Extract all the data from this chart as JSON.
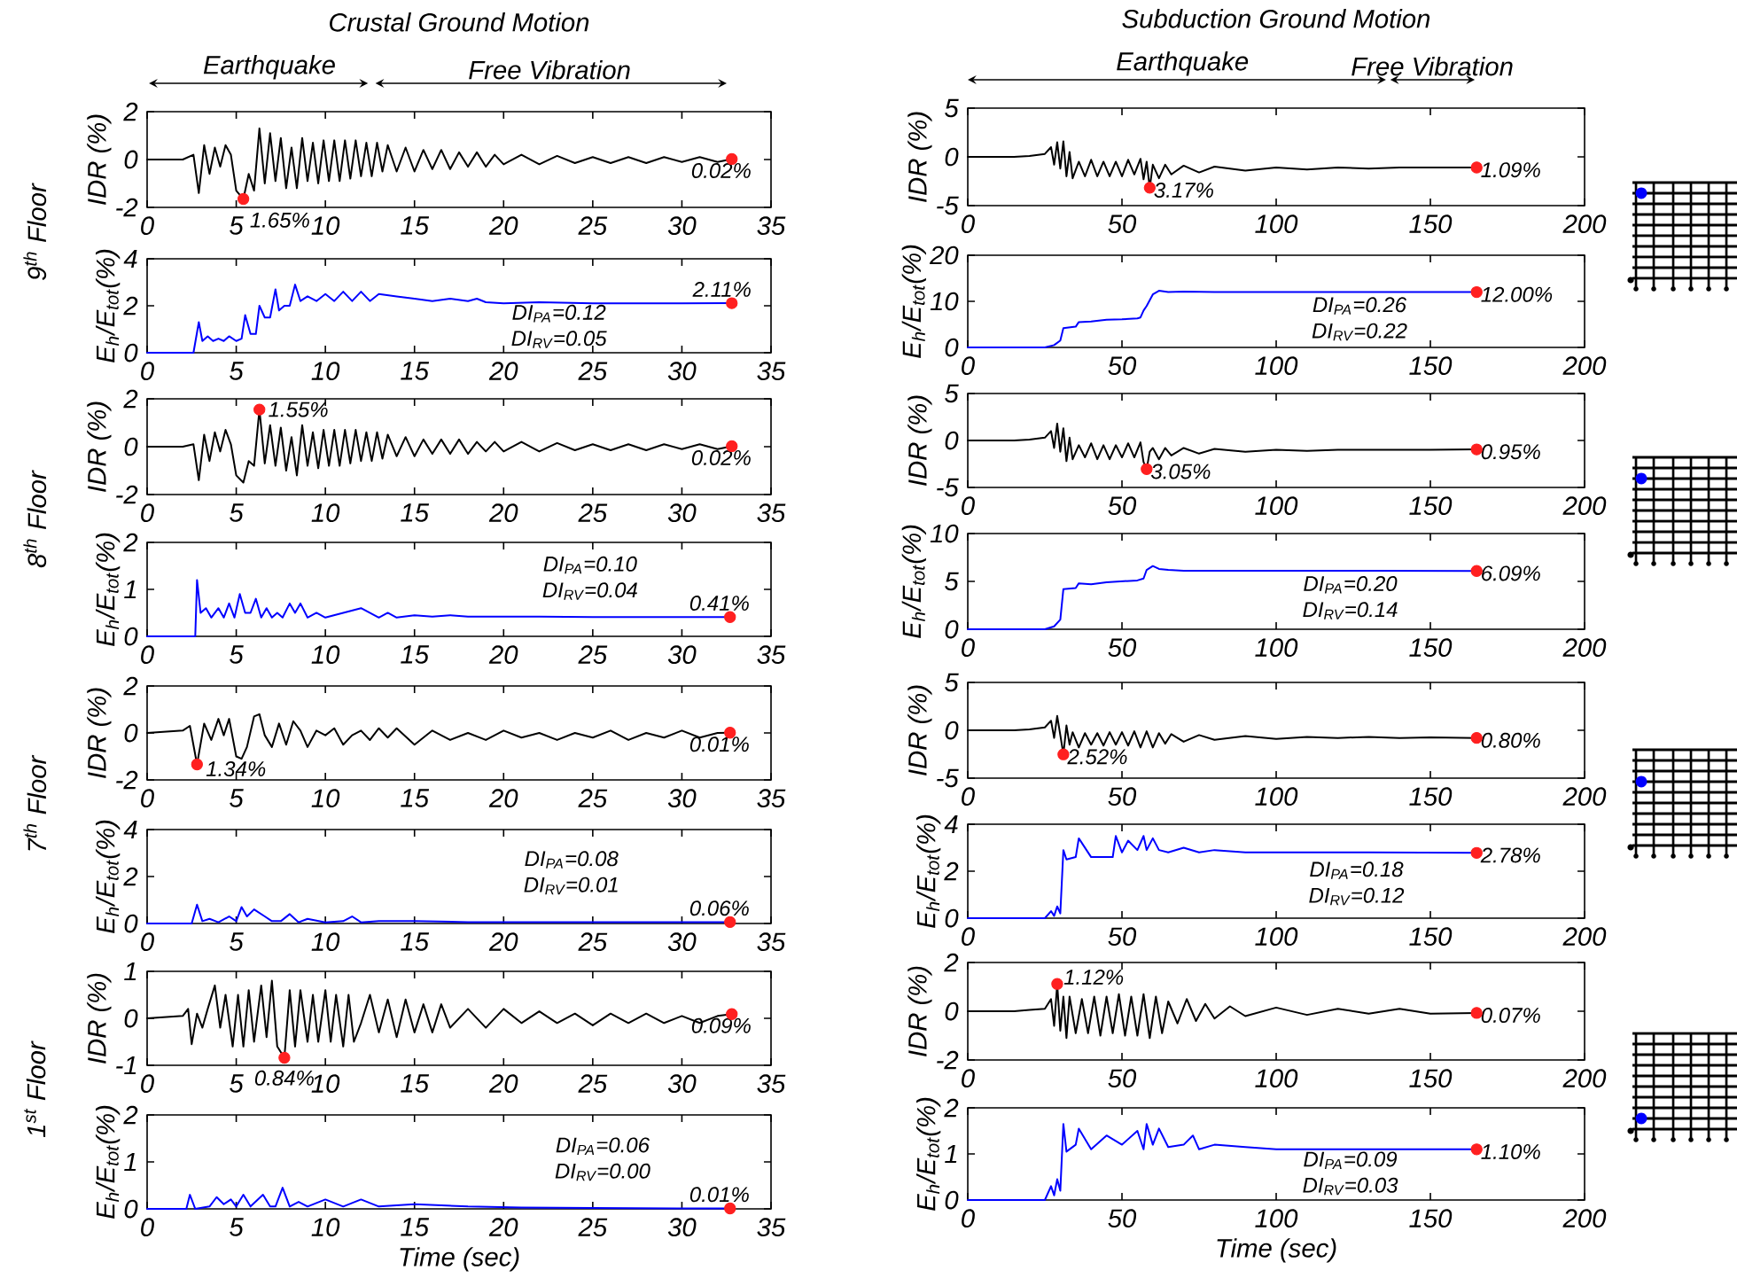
{
  "chart_data": [
    {
      "type": "line",
      "title": "Crustal Ground Motion",
      "ylabel": "IDR (%)",
      "xlim": [
        0,
        35
      ],
      "xticks": [
        0,
        5,
        10,
        15,
        20,
        25,
        30,
        35
      ],
      "ylim": [
        -2,
        2
      ],
      "yticks": [
        -2,
        0,
        2
      ],
      "series": [
        {
          "color": "#000000",
          "x": [
            0,
            2,
            2.6,
            2.9,
            3.2,
            3.5,
            3.8,
            4.1,
            4.4,
            4.7,
            5.0,
            5.4,
            5.7,
            6.0,
            6.3,
            6.6,
            6.9,
            7.2,
            7.5,
            7.8,
            8.1,
            8.4,
            8.7,
            9.0,
            9.3,
            9.6,
            9.9,
            10.2,
            10.5,
            10.8,
            11.1,
            11.4,
            11.7,
            12.0,
            12.3,
            12.6,
            12.9,
            13.2,
            13.5,
            14.0,
            14.5,
            15.0,
            15.5,
            16.0,
            16.5,
            17.0,
            17.5,
            18.0,
            18.5,
            19.0,
            19.5,
            20.0,
            21,
            22,
            23,
            24,
            25,
            26,
            27,
            28,
            29,
            30,
            31,
            32,
            32.8
          ],
          "values": [
            0,
            0,
            0.2,
            -1.4,
            0.6,
            -0.6,
            0.5,
            -0.3,
            0.6,
            0.2,
            -1.3,
            -1.65,
            -0.6,
            -1.3,
            1.3,
            -1.0,
            1.1,
            -0.9,
            0.9,
            -1.2,
            0.5,
            -1.2,
            0.9,
            -0.9,
            0.7,
            -1.0,
            0.8,
            -0.9,
            0.8,
            -0.9,
            0.8,
            -0.8,
            0.8,
            -0.7,
            0.7,
            -0.7,
            0.7,
            -0.5,
            0.6,
            -0.5,
            0.5,
            -0.5,
            0.4,
            -0.4,
            0.4,
            -0.4,
            0.3,
            -0.3,
            0.3,
            -0.3,
            0.2,
            -0.2,
            0.2,
            -0.2,
            0.15,
            -0.15,
            0.1,
            -0.15,
            0.1,
            -0.15,
            0.1,
            -0.1,
            0.1,
            -0.1,
            0.02
          ]
        },
        {
          "type": "scatter",
          "color": "#ff2020",
          "x": [
            5.4,
            32.8
          ],
          "values": [
            -1.65,
            0.02
          ]
        }
      ],
      "annotations": [
        "Earthquake",
        "Free Vibration",
        {
          "text": "1.65%",
          "x": 5.4,
          "y": -1.65
        },
        {
          "text": "0.02%",
          "x": 32.8,
          "y": 0.02
        },
        "9$^{th}$ Floor"
      ]
    },
    {
      "type": "line",
      "title": "Subduction Ground Motion",
      "ylabel": "IDR (%)",
      "xlim": [
        0,
        200
      ],
      "xticks": [
        0,
        50,
        100,
        150,
        200
      ],
      "ylim": [
        -5,
        5
      ],
      "yticks": [
        -5,
        0,
        5
      ],
      "series": [
        {
          "color": "#000000",
          "x": [
            0,
            15,
            20,
            25,
            27,
            28,
            29,
            30,
            31,
            32,
            33,
            34,
            36,
            38,
            40,
            42,
            44,
            46,
            48,
            50,
            52,
            54,
            56,
            57,
            58,
            59,
            60,
            62,
            64,
            66,
            70,
            75,
            80,
            90,
            100,
            110,
            120,
            130,
            140,
            150,
            165
          ],
          "values": [
            0,
            0,
            0.1,
            0.3,
            1.0,
            -0.8,
            1.5,
            -1.2,
            1.6,
            -2.0,
            0.5,
            -2.2,
            -0.5,
            -2.0,
            -0.3,
            -2.0,
            -0.5,
            -2.0,
            -0.5,
            -2.0,
            -0.3,
            -1.8,
            -0.2,
            -2.3,
            -0.5,
            -3.17,
            -0.8,
            -2.2,
            -0.8,
            -1.8,
            -0.9,
            -1.6,
            -1.0,
            -1.4,
            -1.1,
            -1.3,
            -1.1,
            -1.2,
            -1.1,
            -1.1,
            -1.09
          ]
        },
        {
          "type": "scatter",
          "color": "#ff2020",
          "x": [
            59,
            165
          ],
          "values": [
            -3.17,
            -1.09
          ]
        }
      ],
      "annotations": [
        "Earthquake",
        "Free Vibration",
        {
          "text": "3.17%",
          "x": 59,
          "y": -3.17
        },
        {
          "text": "1.09%",
          "x": 165,
          "y": -1.09
        }
      ]
    },
    {
      "type": "line",
      "ylabel": "E$_{h}$/E$_{tot}$(%)",
      "xlim": [
        0,
        35
      ],
      "xticks": [
        0,
        5,
        10,
        15,
        20,
        25,
        30,
        35
      ],
      "ylim": [
        0,
        4
      ],
      "yticks": [
        0,
        2,
        4
      ],
      "series": [
        {
          "color": "#0000ff",
          "x": [
            0,
            2.6,
            2.9,
            3.1,
            3.4,
            3.7,
            4.0,
            4.3,
            4.6,
            5.0,
            5.3,
            5.5,
            5.8,
            6.1,
            6.3,
            6.6,
            6.9,
            7.2,
            7.4,
            7.7,
            8.0,
            8.3,
            8.6,
            9.0,
            9.5,
            10,
            10.5,
            11,
            11.5,
            12,
            12.5,
            13,
            14,
            15,
            16,
            17,
            18,
            18.5,
            19,
            20,
            22,
            25,
            28,
            30,
            32.8
          ],
          "values": [
            0,
            0,
            1.3,
            0.5,
            0.7,
            0.5,
            0.6,
            0.5,
            0.7,
            0.5,
            0.6,
            1.6,
            0.8,
            0.8,
            2.0,
            1.5,
            1.5,
            2.7,
            1.8,
            2.0,
            2.0,
            2.9,
            2.2,
            2.4,
            2.2,
            2.5,
            2.2,
            2.6,
            2.2,
            2.6,
            2.2,
            2.5,
            2.4,
            2.3,
            2.2,
            2.3,
            2.2,
            2.3,
            2.15,
            2.1,
            2.15,
            2.1,
            2.1,
            2.1,
            2.11
          ]
        },
        {
          "type": "scatter",
          "color": "#ff2020",
          "x": [
            32.8
          ],
          "values": [
            2.11
          ]
        }
      ],
      "annotations": [
        {
          "text": "2.11%",
          "x": 32.8,
          "y": 2.11
        },
        "DI$_{PA}$=0.12",
        "DI$_{RV}$=0.05"
      ]
    },
    {
      "type": "line",
      "ylabel": "E$_{h}$/E$_{tot}$(%)",
      "xlim": [
        0,
        200
      ],
      "xticks": [
        0,
        50,
        100,
        150,
        200
      ],
      "ylim": [
        0,
        20
      ],
      "yticks": [
        0,
        10,
        20
      ],
      "series": [
        {
          "color": "#0000ff",
          "x": [
            0,
            25,
            28,
            30,
            31,
            35,
            36,
            40,
            45,
            50,
            55,
            56,
            57,
            58,
            60,
            62,
            65,
            70,
            80,
            100,
            130,
            165
          ],
          "values": [
            0,
            0,
            0.5,
            1.5,
            4.2,
            4.5,
            5.5,
            5.6,
            6.0,
            6.1,
            6.3,
            6.5,
            8.0,
            9.0,
            11.5,
            12.3,
            12.0,
            12.1,
            12.0,
            12.0,
            12.0,
            12.0
          ]
        },
        {
          "type": "scatter",
          "color": "#ff2020",
          "x": [
            165
          ],
          "values": [
            12.0
          ]
        }
      ],
      "annotations": [
        {
          "text": "12.00%",
          "x": 165,
          "y": 12.0
        },
        "DI$_{PA}$=0.26",
        "DI$_{RV}$=0.22"
      ]
    },
    {
      "type": "line",
      "ylabel": "IDR (%)",
      "xlim": [
        0,
        35
      ],
      "xticks": [
        0,
        5,
        10,
        15,
        20,
        25,
        30,
        35
      ],
      "ylim": [
        -2,
        2
      ],
      "yticks": [
        -2,
        0,
        2
      ],
      "series": [
        {
          "color": "#000000",
          "x": [
            0,
            2,
            2.6,
            2.9,
            3.2,
            3.5,
            3.8,
            4.1,
            4.4,
            4.7,
            5.0,
            5.4,
            5.7,
            6.0,
            6.3,
            6.6,
            6.9,
            7.2,
            7.5,
            7.8,
            8.1,
            8.4,
            8.7,
            9.0,
            9.3,
            9.6,
            9.9,
            10.2,
            10.5,
            10.8,
            11.1,
            11.4,
            11.7,
            12.0,
            12.3,
            12.6,
            12.9,
            13.2,
            13.5,
            14.0,
            14.5,
            15.0,
            15.5,
            16.0,
            16.5,
            17.0,
            17.5,
            18.0,
            18.5,
            19.0,
            19.5,
            20.0,
            21,
            22,
            23,
            24,
            25,
            26,
            27,
            28,
            29,
            30,
            31,
            32,
            32.8
          ],
          "values": [
            0,
            0,
            0.1,
            -1.4,
            0.5,
            -0.6,
            0.6,
            -0.2,
            0.7,
            0.1,
            -1.2,
            -1.5,
            -0.6,
            -0.8,
            1.55,
            -0.7,
            0.9,
            -0.8,
            0.8,
            -1.0,
            0.4,
            -1.2,
            0.9,
            -0.8,
            0.6,
            -0.9,
            0.7,
            -0.8,
            0.7,
            -0.8,
            0.7,
            -0.7,
            0.7,
            -0.6,
            0.6,
            -0.6,
            0.6,
            -0.5,
            0.5,
            -0.4,
            0.4,
            -0.4,
            0.3,
            -0.3,
            0.3,
            -0.3,
            0.3,
            -0.3,
            0.2,
            -0.2,
            0.2,
            -0.2,
            0.2,
            -0.2,
            0.15,
            -0.15,
            0.1,
            -0.15,
            0.1,
            -0.15,
            0.1,
            -0.1,
            0.1,
            -0.1,
            0.02
          ]
        },
        {
          "type": "scatter",
          "color": "#ff2020",
          "x": [
            6.3,
            32.8
          ],
          "values": [
            1.55,
            0.02
          ]
        }
      ],
      "annotations": [
        {
          "text": "1.55%",
          "x": 6.3,
          "y": 1.55
        },
        {
          "text": "0.02%",
          "x": 32.8,
          "y": 0.02
        },
        "8$^{th}$ Floor"
      ]
    },
    {
      "type": "line",
      "ylabel": "IDR (%)",
      "xlim": [
        0,
        200
      ],
      "xticks": [
        0,
        50,
        100,
        150,
        200
      ],
      "ylim": [
        -5,
        5
      ],
      "yticks": [
        -5,
        0,
        5
      ],
      "series": [
        {
          "color": "#000000",
          "x": [
            0,
            15,
            20,
            25,
            27,
            28,
            29,
            30,
            31,
            32,
            33,
            34,
            36,
            38,
            40,
            42,
            44,
            46,
            48,
            50,
            52,
            54,
            56,
            57,
            58,
            59,
            60,
            62,
            64,
            66,
            70,
            75,
            80,
            90,
            100,
            110,
            120,
            130,
            140,
            150,
            165
          ],
          "values": [
            0,
            0,
            0.1,
            0.3,
            1.0,
            -0.8,
            1.8,
            -1.2,
            1.3,
            -2.2,
            0.3,
            -2.0,
            -0.5,
            -1.8,
            -0.3,
            -2.0,
            -0.5,
            -2.0,
            -0.5,
            -1.8,
            -0.3,
            -1.8,
            -0.2,
            -2.3,
            -3.05,
            -1.2,
            -0.8,
            -2.0,
            -0.8,
            -1.6,
            -0.8,
            -1.4,
            -0.9,
            -1.2,
            -1.0,
            -1.1,
            -1.0,
            -1.0,
            -1.0,
            -1.0,
            -0.95
          ]
        },
        {
          "type": "scatter",
          "color": "#ff2020",
          "x": [
            58,
            165
          ],
          "values": [
            -3.05,
            -0.95
          ]
        }
      ],
      "annotations": [
        {
          "text": "3.05%",
          "x": 58,
          "y": -3.05
        },
        {
          "text": "0.95%",
          "x": 165,
          "y": -0.95
        }
      ]
    },
    {
      "type": "line",
      "ylabel": "E$_{h}$/E$_{tot}$(%)",
      "xlim": [
        0,
        35
      ],
      "xticks": [
        0,
        5,
        10,
        15,
        20,
        25,
        30,
        35
      ],
      "ylim": [
        0,
        2
      ],
      "yticks": [
        0,
        1,
        2
      ],
      "series": [
        {
          "color": "#0000ff",
          "x": [
            0,
            2.7,
            2.8,
            3.0,
            3.3,
            3.6,
            4.0,
            4.3,
            4.6,
            4.9,
            5.2,
            5.5,
            5.8,
            6.1,
            6.4,
            6.7,
            7.0,
            7.3,
            7.6,
            8.0,
            8.3,
            8.6,
            9.0,
            9.5,
            10,
            11,
            12,
            13,
            13.5,
            14,
            15,
            16,
            17,
            18,
            20,
            22,
            25,
            28,
            30,
            32.7
          ],
          "values": [
            0,
            0,
            1.2,
            0.5,
            0.6,
            0.4,
            0.6,
            0.4,
            0.7,
            0.4,
            0.9,
            0.5,
            0.5,
            0.8,
            0.4,
            0.6,
            0.4,
            0.5,
            0.4,
            0.7,
            0.5,
            0.7,
            0.4,
            0.5,
            0.4,
            0.5,
            0.6,
            0.4,
            0.5,
            0.4,
            0.45,
            0.42,
            0.45,
            0.42,
            0.42,
            0.42,
            0.41,
            0.41,
            0.41,
            0.41
          ]
        },
        {
          "type": "scatter",
          "color": "#ff2020",
          "x": [
            32.7
          ],
          "values": [
            0.41
          ]
        }
      ],
      "annotations": [
        {
          "text": "0.41%",
          "x": 32.7,
          "y": 0.41
        },
        "DI$_{PA}$=0.10",
        "DI$_{RV}$=0.04"
      ]
    },
    {
      "type": "line",
      "ylabel": "E$_{h}$/E$_{tot}$(%)",
      "xlim": [
        0,
        200
      ],
      "xticks": [
        0,
        50,
        100,
        150,
        200
      ],
      "ylim": [
        0,
        10
      ],
      "yticks": [
        0,
        5,
        10
      ],
      "series": [
        {
          "color": "#0000ff",
          "x": [
            0,
            25,
            28,
            30,
            31,
            35,
            36,
            40,
            45,
            50,
            55,
            57,
            58,
            60,
            62,
            65,
            70,
            80,
            100,
            130,
            165
          ],
          "values": [
            0,
            0,
            0.3,
            1.0,
            4.2,
            4.3,
            4.8,
            4.7,
            4.9,
            5.0,
            5.1,
            5.3,
            6.2,
            6.6,
            6.3,
            6.2,
            6.1,
            6.1,
            6.1,
            6.1,
            6.09
          ]
        },
        {
          "type": "scatter",
          "color": "#ff2020",
          "x": [
            165
          ],
          "values": [
            6.09
          ]
        }
      ],
      "annotations": [
        {
          "text": "6.09%",
          "x": 165,
          "y": 6.09
        },
        "DI$_{PA}$=0.20",
        "DI$_{RV}$=0.14"
      ]
    },
    {
      "type": "line",
      "ylabel": "IDR (%)",
      "xlim": [
        0,
        35
      ],
      "xticks": [
        0,
        5,
        10,
        15,
        20,
        25,
        30,
        35
      ],
      "ylim": [
        -2,
        2
      ],
      "yticks": [
        -2,
        0,
        2
      ],
      "series": [
        {
          "color": "#000000",
          "x": [
            0,
            2,
            2.4,
            2.8,
            3.2,
            3.6,
            4.0,
            4.3,
            4.6,
            5.0,
            5.3,
            5.6,
            6.0,
            6.3,
            6.6,
            7.0,
            7.4,
            7.8,
            8.2,
            8.6,
            9.0,
            9.5,
            10,
            10.5,
            11,
            11.5,
            12,
            12.5,
            13,
            13.5,
            14,
            15,
            16,
            17,
            18,
            19,
            20,
            21,
            22,
            23,
            24,
            25,
            26,
            27,
            28,
            29,
            30,
            31,
            32,
            32.7
          ],
          "values": [
            0,
            0.1,
            0.3,
            -1.34,
            0.4,
            -0.3,
            0.6,
            -0.1,
            0.6,
            -1.0,
            -1.1,
            -0.6,
            0.7,
            0.8,
            -0.1,
            -0.6,
            0.4,
            -0.5,
            0.5,
            0.1,
            -0.6,
            0.1,
            -0.1,
            0.2,
            -0.5,
            -0.1,
            0.1,
            -0.3,
            0.2,
            -0.2,
            0.2,
            -0.5,
            0.1,
            -0.3,
            0,
            -0.3,
            0.1,
            -0.2,
            0,
            -0.3,
            0,
            -0.2,
            0.1,
            -0.3,
            0,
            -0.2,
            0.1,
            -0.2,
            0,
            0.01
          ]
        },
        {
          "type": "scatter",
          "color": "#ff2020",
          "x": [
            2.8,
            32.7
          ],
          "values": [
            -1.34,
            0.01
          ]
        }
      ],
      "annotations": [
        {
          "text": "1.34%",
          "x": 2.8,
          "y": -1.34
        },
        {
          "text": "0.01%",
          "x": 32.7,
          "y": 0.01
        },
        "7$^{th}$ Floor"
      ]
    },
    {
      "type": "line",
      "ylabel": "IDR (%)",
      "xlim": [
        0,
        200
      ],
      "xticks": [
        0,
        50,
        100,
        150,
        200
      ],
      "ylim": [
        -5,
        5
      ],
      "yticks": [
        -5,
        0,
        5
      ],
      "series": [
        {
          "color": "#000000",
          "x": [
            0,
            15,
            20,
            25,
            27,
            28,
            29,
            30,
            31,
            32,
            33,
            34,
            36,
            38,
            40,
            42,
            44,
            46,
            48,
            50,
            52,
            54,
            56,
            58,
            60,
            62,
            64,
            66,
            70,
            75,
            80,
            90,
            100,
            110,
            120,
            130,
            140,
            150,
            165
          ],
          "values": [
            0,
            0,
            0.1,
            0.3,
            1.0,
            -0.8,
            1.5,
            -0.5,
            -2.52,
            0.5,
            -1.5,
            -0.2,
            -1.8,
            -0.3,
            -1.5,
            -0.3,
            -1.6,
            -0.2,
            -1.5,
            -0.2,
            -1.6,
            -0.1,
            -1.8,
            -0.1,
            -1.8,
            -0.3,
            -1.4,
            -0.4,
            -1.2,
            -0.5,
            -1.0,
            -0.6,
            -0.9,
            -0.7,
            -0.8,
            -0.7,
            -0.8,
            -0.75,
            -0.8
          ]
        },
        {
          "type": "scatter",
          "color": "#ff2020",
          "x": [
            31,
            165
          ],
          "values": [
            -2.52,
            -0.8
          ]
        }
      ],
      "annotations": [
        {
          "text": "2.52%",
          "x": 31,
          "y": -2.52
        },
        {
          "text": "0.80%",
          "x": 165,
          "y": -0.8
        }
      ]
    },
    {
      "type": "line",
      "ylabel": "E$_{h}$/E$_{tot}$(%)",
      "xlim": [
        0,
        35
      ],
      "xticks": [
        0,
        5,
        10,
        15,
        20,
        25,
        30,
        35
      ],
      "ylim": [
        0,
        4
      ],
      "yticks": [
        0,
        2,
        4
      ],
      "series": [
        {
          "color": "#0000ff",
          "x": [
            0,
            2.5,
            2.8,
            3.1,
            3.5,
            4,
            4.6,
            5.0,
            5.3,
            5.6,
            6.0,
            6.6,
            7.0,
            7.5,
            8.0,
            8.5,
            9,
            10,
            11,
            11.5,
            12,
            13,
            15,
            18,
            22,
            26,
            30,
            32.7
          ],
          "values": [
            0,
            0,
            0.8,
            0.1,
            0.2,
            0.05,
            0.3,
            0.1,
            0.7,
            0.3,
            0.6,
            0.3,
            0.1,
            0.1,
            0.4,
            0.05,
            0.2,
            0.05,
            0.1,
            0.3,
            0.05,
            0.1,
            0.1,
            0.06,
            0.06,
            0.06,
            0.06,
            0.06
          ]
        },
        {
          "type": "scatter",
          "color": "#ff2020",
          "x": [
            32.7
          ],
          "values": [
            0.06
          ]
        }
      ],
      "annotations": [
        {
          "text": "0.06%",
          "x": 32.7,
          "y": 0.06
        },
        "DI$_{PA}$=0.08",
        "DI$_{RV}$=0.01"
      ]
    },
    {
      "type": "line",
      "ylabel": "E$_{h}$/E$_{tot}$(%)",
      "xlim": [
        0,
        200
      ],
      "xticks": [
        0,
        50,
        100,
        150,
        200
      ],
      "ylim": [
        0,
        4
      ],
      "yticks": [
        0,
        2,
        4
      ],
      "series": [
        {
          "color": "#0000ff",
          "x": [
            0,
            25,
            27,
            28,
            29,
            30,
            31,
            32,
            35,
            36,
            40,
            45,
            47,
            48,
            50,
            52,
            55,
            57,
            58,
            60,
            62,
            65,
            70,
            75,
            80,
            90,
            100,
            130,
            165
          ],
          "values": [
            0,
            0,
            0.3,
            0.1,
            0.5,
            0.2,
            2.9,
            2.5,
            2.6,
            3.4,
            2.6,
            2.6,
            2.6,
            3.5,
            2.8,
            3.3,
            2.9,
            3.5,
            2.9,
            3.4,
            2.9,
            2.8,
            3.0,
            2.8,
            2.9,
            2.8,
            2.8,
            2.8,
            2.78
          ]
        },
        {
          "type": "scatter",
          "color": "#ff2020",
          "x": [
            165
          ],
          "values": [
            2.78
          ]
        }
      ],
      "annotations": [
        {
          "text": "2.78%",
          "x": 165,
          "y": 2.78
        },
        "DI$_{PA}$=0.18",
        "DI$_{RV}$=0.12"
      ]
    },
    {
      "type": "line",
      "ylabel": "IDR (%)",
      "xlim": [
        0,
        35
      ],
      "xticks": [
        0,
        5,
        10,
        15,
        20,
        25,
        30,
        35
      ],
      "ylim": [
        -1,
        1
      ],
      "yticks": [
        -1,
        0,
        1
      ],
      "series": [
        {
          "color": "#000000",
          "x": [
            0,
            2,
            2.3,
            2.5,
            2.8,
            3.1,
            3.4,
            3.8,
            4.1,
            4.4,
            4.8,
            5.1,
            5.4,
            5.7,
            6.0,
            6.4,
            6.7,
            7.0,
            7.3,
            7.7,
            8.0,
            8.3,
            8.6,
            9.0,
            9.3,
            9.6,
            10.0,
            10.3,
            10.6,
            11.0,
            11.3,
            11.6,
            12.0,
            12.5,
            13,
            13.5,
            14,
            14.5,
            15,
            15.5,
            16,
            16.5,
            17,
            18,
            19,
            20,
            21,
            22,
            23,
            24,
            25,
            26,
            27,
            28,
            29,
            30,
            31,
            32,
            32.8
          ],
          "values": [
            0,
            0.05,
            0.2,
            -0.55,
            0.1,
            -0.2,
            0.2,
            0.7,
            -0.2,
            0.5,
            -0.6,
            0.5,
            -0.6,
            0.6,
            -0.5,
            0.7,
            -0.4,
            0.8,
            -0.6,
            -0.84,
            0.6,
            -0.6,
            0.6,
            -0.5,
            0.5,
            -0.5,
            0.6,
            -0.5,
            0.5,
            -0.6,
            0.5,
            -0.5,
            -0.1,
            0.5,
            -0.3,
            0.4,
            -0.4,
            0.4,
            -0.3,
            0.3,
            -0.3,
            0.3,
            -0.2,
            0.2,
            -0.2,
            0.2,
            -0.1,
            0.15,
            -0.1,
            0.1,
            -0.15,
            0.1,
            -0.1,
            0.1,
            -0.1,
            0.05,
            -0.1,
            0.05,
            0.09
          ]
        },
        {
          "type": "scatter",
          "color": "#ff2020",
          "x": [
            7.7,
            32.8
          ],
          "values": [
            -0.84,
            0.09
          ]
        }
      ],
      "annotations": [
        {
          "text": "0.84%",
          "x": 7.7,
          "y": -0.84
        },
        {
          "text": "0.09%",
          "x": 32.8,
          "y": 0.09
        },
        "1$^{st}$ Floor"
      ]
    },
    {
      "type": "line",
      "ylabel": "IDR (%)",
      "xlim": [
        0,
        200
      ],
      "xticks": [
        0,
        50,
        100,
        150,
        200
      ],
      "ylim": [
        -2,
        2
      ],
      "yticks": [
        -2,
        0,
        2
      ],
      "series": [
        {
          "color": "#000000",
          "x": [
            0,
            15,
            20,
            25,
            27,
            28,
            29,
            30,
            31,
            32,
            33,
            35,
            37,
            39,
            41,
            43,
            45,
            47,
            49,
            51,
            53,
            55,
            57,
            59,
            61,
            63,
            65,
            68,
            71,
            74,
            77,
            80,
            85,
            90,
            100,
            110,
            120,
            130,
            140,
            150,
            165
          ],
          "values": [
            0,
            0,
            0.05,
            0.1,
            0.5,
            -0.6,
            1.12,
            -0.8,
            0.6,
            -1.1,
            0.6,
            -0.9,
            0.5,
            -0.9,
            0.6,
            -1.0,
            0.6,
            -0.9,
            0.7,
            -1.0,
            0.6,
            -1.0,
            0.7,
            -1.1,
            0.6,
            -0.9,
            0.4,
            -0.5,
            0.5,
            -0.4,
            0.3,
            -0.3,
            0.2,
            -0.2,
            0.15,
            -0.15,
            0.1,
            -0.1,
            0.1,
            -0.1,
            -0.07
          ]
        },
        {
          "type": "scatter",
          "color": "#ff2020",
          "x": [
            29,
            165
          ],
          "values": [
            1.12,
            -0.07
          ]
        }
      ],
      "annotations": [
        {
          "text": "1.12%",
          "x": 29,
          "y": 1.12
        },
        {
          "text": "0.07%",
          "x": 165,
          "y": -0.07
        }
      ]
    },
    {
      "type": "line",
      "xlabel": "Time (sec)",
      "ylabel": "E$_{h}$/E$_{tot}$(%)",
      "xlim": [
        0,
        35
      ],
      "xticks": [
        0,
        5,
        10,
        15,
        20,
        25,
        30,
        35
      ],
      "ylim": [
        0,
        2
      ],
      "yticks": [
        0,
        1,
        2
      ],
      "series": [
        {
          "color": "#0000ff",
          "x": [
            0,
            2.2,
            2.4,
            2.7,
            3.5,
            3.9,
            4.3,
            4.7,
            5.0,
            5.4,
            5.8,
            6.5,
            6.9,
            7.2,
            7.6,
            8.0,
            8.5,
            9,
            10,
            11,
            12,
            13,
            15,
            18,
            21,
            25,
            30,
            32.7
          ],
          "values": [
            0,
            0,
            0.3,
            0,
            0.05,
            0.25,
            0.1,
            0.2,
            0.05,
            0.3,
            0.05,
            0.3,
            0.05,
            0.05,
            0.45,
            0.05,
            0.15,
            0.05,
            0.2,
            0.05,
            0.2,
            0.05,
            0.1,
            0.05,
            0.03,
            0.02,
            0.01,
            0.01
          ]
        },
        {
          "type": "scatter",
          "color": "#ff2020",
          "x": [
            32.7
          ],
          "values": [
            0.01
          ]
        }
      ],
      "annotations": [
        {
          "text": "0.01%",
          "x": 32.7,
          "y": 0.01
        },
        "DI$_{PA}$=0.06",
        "DI$_{RV}$=0.00"
      ]
    },
    {
      "type": "line",
      "xlabel": "Time (sec)",
      "ylabel": "E$_{h}$/E$_{tot}$(%)",
      "xlim": [
        0,
        200
      ],
      "xticks": [
        0,
        50,
        100,
        150,
        200
      ],
      "ylim": [
        0,
        2
      ],
      "yticks": [
        0,
        1,
        2
      ],
      "series": [
        {
          "color": "#0000ff",
          "x": [
            0,
            25,
            27,
            28,
            29,
            30,
            31,
            32,
            35,
            36,
            40,
            45,
            50,
            55,
            57,
            58,
            60,
            62,
            65,
            70,
            73,
            75,
            80,
            90,
            100,
            130,
            165
          ],
          "values": [
            0,
            0,
            0.3,
            0.1,
            0.45,
            0.2,
            1.65,
            1.05,
            1.2,
            1.55,
            1.1,
            1.4,
            1.2,
            1.5,
            1.1,
            1.65,
            1.2,
            1.55,
            1.15,
            1.2,
            1.4,
            1.1,
            1.2,
            1.15,
            1.1,
            1.1,
            1.1
          ]
        },
        {
          "type": "scatter",
          "color": "#ff2020",
          "x": [
            165
          ],
          "values": [
            1.1
          ]
        }
      ],
      "annotations": [
        {
          "text": "1.10%",
          "x": 165,
          "y": 1.1
        },
        "DI$_{PA}$=0.09",
        "DI$_{RV}$=0.03"
      ]
    }
  ]
}
